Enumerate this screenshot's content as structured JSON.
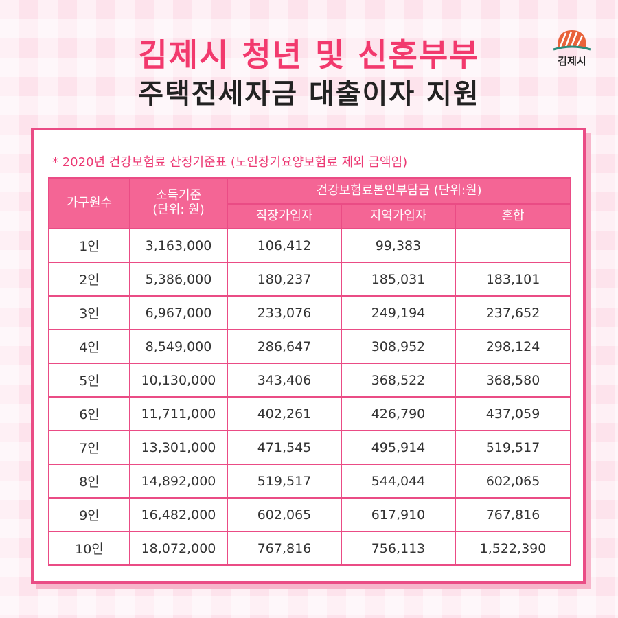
{
  "header": {
    "title_line1": "김제시 청년 및 신혼부부",
    "title_line2": "주택전세자금 대출이자 지원",
    "logo_text": "김제시"
  },
  "note": "* 2020년 건강보험료 산정기준표 (노인장기요양보험료 제외 금액임)",
  "table": {
    "col_household": "가구원수",
    "col_income": "소득기준\n(단위: 원)",
    "col_premium_group": "건강보험료본인부담금 (단위:원)",
    "sub_cols": [
      "직장가입자",
      "지역가입자",
      "혼합"
    ],
    "rows": [
      [
        "1인",
        "3,163,000",
        "106,412",
        "99,383",
        ""
      ],
      [
        "2인",
        "5,386,000",
        "180,237",
        "185,031",
        "183,101"
      ],
      [
        "3인",
        "6,967,000",
        "233,076",
        "249,194",
        "237,652"
      ],
      [
        "4인",
        "8,549,000",
        "286,647",
        "308,952",
        "298,124"
      ],
      [
        "5인",
        "10,130,000",
        "343,406",
        "368,522",
        "368,580"
      ],
      [
        "6인",
        "11,711,000",
        "402,261",
        "426,790",
        "437,059"
      ],
      [
        "7인",
        "13,301,000",
        "471,545",
        "495,914",
        "519,517"
      ],
      [
        "8인",
        "14,892,000",
        "519,517",
        "544,044",
        "602,065"
      ],
      [
        "9인",
        "16,482,000",
        "602,065",
        "617,910",
        "767,816"
      ],
      [
        "10인",
        "18,072,000",
        "767,816",
        "756,113",
        "1,522,390"
      ]
    ]
  },
  "colors": {
    "accent": "#f2396d",
    "table_border": "#ea4c85",
    "header_fill": "#f46595",
    "background": "#fde3ec"
  },
  "icons": {
    "logo": "gimje-city-logo-icon"
  }
}
